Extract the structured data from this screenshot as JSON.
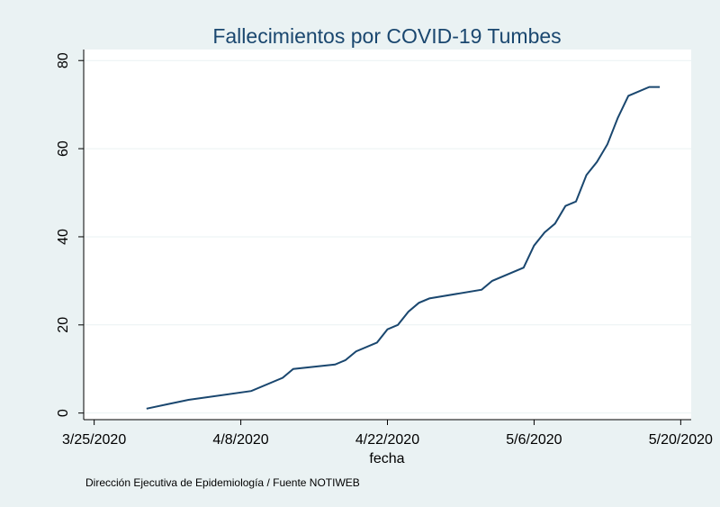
{
  "chart_data": {
    "type": "line",
    "title": "Fallecimientos por COVID-19 Tumbes",
    "x_label": "fecha",
    "note": "Dirección Ejecutiva de Epidemiología / Fuente NOTIWEB",
    "x": [
      "3/30/2020",
      "4/1/2020",
      "4/3/2020",
      "4/9/2020",
      "4/12/2020",
      "4/13/2020",
      "4/17/2020",
      "4/18/2020",
      "4/19/2020",
      "4/21/2020",
      "4/22/2020",
      "4/23/2020",
      "4/24/2020",
      "4/25/2020",
      "4/26/2020",
      "5/1/2020",
      "5/2/2020",
      "5/5/2020",
      "5/6/2020",
      "5/7/2020",
      "5/8/2020",
      "5/9/2020",
      "5/10/2020",
      "5/11/2020",
      "5/12/2020",
      "5/13/2020",
      "5/14/2020",
      "5/15/2020",
      "5/17/2020",
      "5/18/2020"
    ],
    "series": [
      {
        "color": "#1a476f",
        "values": [
          1,
          2,
          3,
          5,
          8,
          10,
          11,
          12,
          14,
          16,
          19,
          20,
          23,
          25,
          26,
          28,
          30,
          33,
          38,
          41,
          43,
          47,
          48,
          54,
          57,
          61,
          67,
          72,
          74,
          74
        ]
      }
    ],
    "xlim": [
      "3/24/2020",
      "5/21/2020"
    ],
    "xticks": [
      "3/25/2020",
      "4/8/2020",
      "4/22/2020",
      "5/6/2020",
      "5/20/2020"
    ],
    "ylim": [
      -1.5,
      82.5
    ],
    "yticks": [
      0,
      20,
      40,
      60,
      80
    ],
    "grid": true
  }
}
